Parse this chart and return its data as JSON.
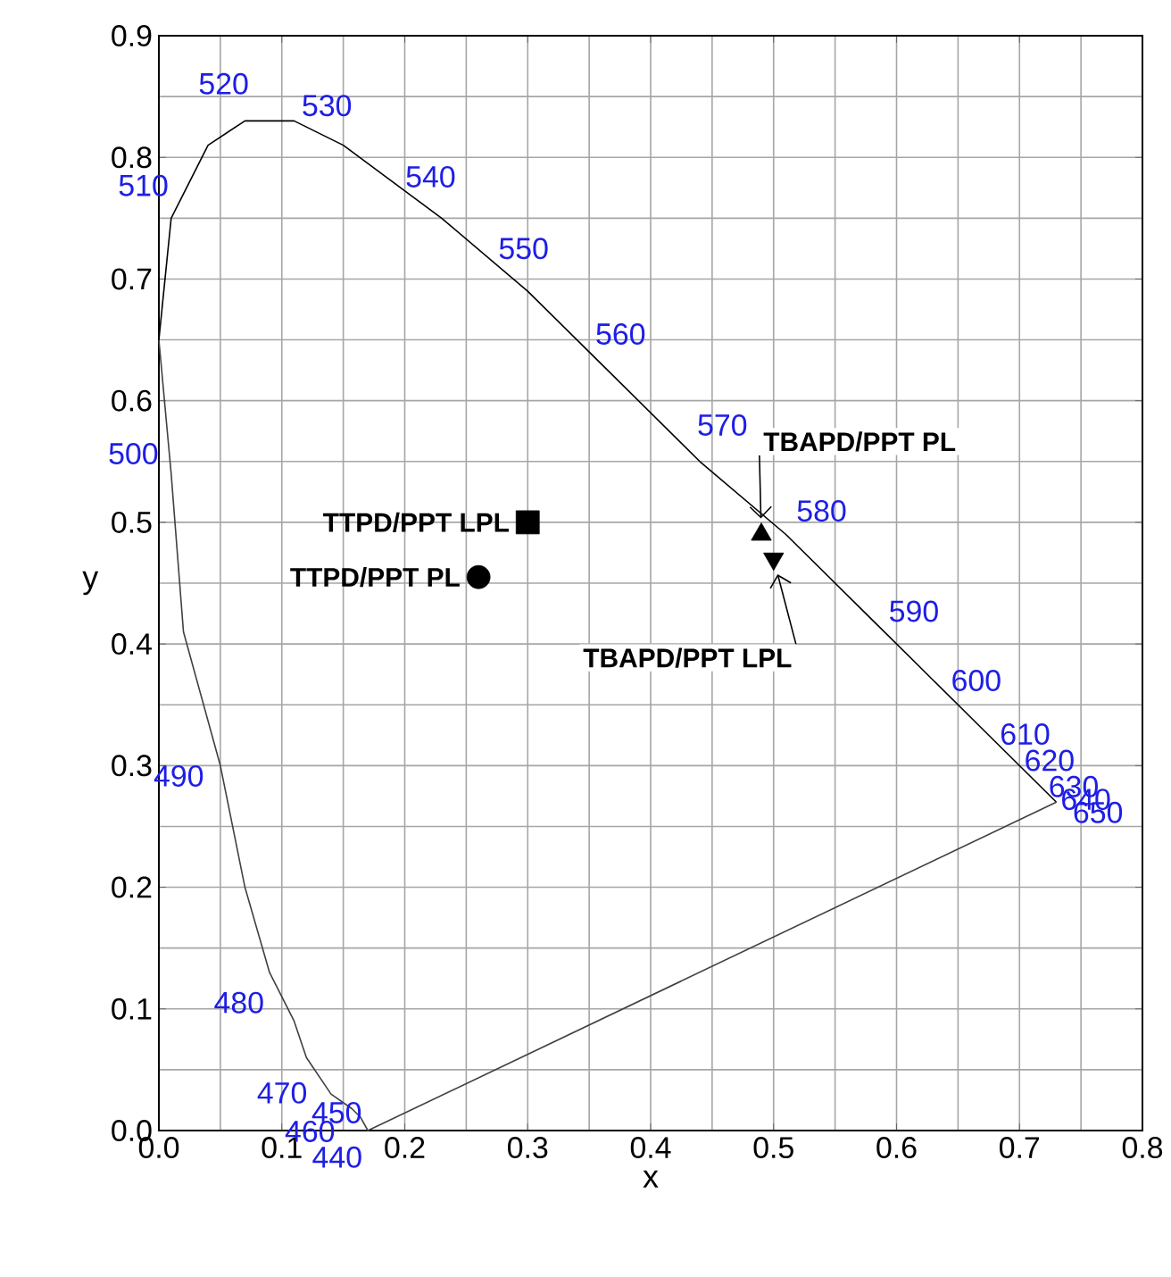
{
  "chart_data": {
    "type": "scatter",
    "xlabel": "x",
    "ylabel": "y",
    "xlim": [
      0,
      0.8
    ],
    "ylim": [
      0,
      0.9
    ],
    "xticks": [
      {
        "value": 0,
        "label": "0.0"
      },
      0.1,
      0.2,
      0.3,
      0.4,
      0.5,
      0.6,
      0.7,
      0.8
    ],
    "yticks": [
      {
        "value": 0,
        "label": "0.0"
      },
      0.1,
      0.2,
      0.3,
      0.4,
      0.5,
      0.6,
      0.7,
      0.8,
      0.9
    ],
    "grid": true,
    "series": [
      {
        "type": "line",
        "color": "#000000",
        "marker": "none",
        "x": [
          0.0,
          0.01,
          0.04,
          0.07,
          0.11,
          0.15,
          0.23,
          0.3,
          0.37,
          0.44,
          0.51,
          0.58,
          0.63,
          0.67,
          0.69,
          0.71,
          0.72,
          0.73
        ],
        "values": [
          0.65,
          0.75,
          0.81,
          0.83,
          0.83,
          0.81,
          0.75,
          0.69,
          0.62,
          0.55,
          0.49,
          0.42,
          0.37,
          0.33,
          0.31,
          0.29,
          0.28,
          0.27
        ]
      },
      {
        "type": "line",
        "color": "#404040",
        "marker": "none",
        "x": [
          0.0,
          0.01,
          0.02,
          0.05,
          0.07,
          0.09,
          0.11,
          0.12,
          0.14,
          0.157,
          0.164,
          0.17,
          0.73
        ],
        "values": [
          0.65,
          0.54,
          0.41,
          0.3,
          0.2,
          0.13,
          0.09,
          0.06,
          0.03,
          0.018,
          0.011,
          0.0,
          0.27
        ]
      },
      {
        "name": "TTPD/PPT  LPL",
        "color": "#000000",
        "marker": "square",
        "x": [
          0.3
        ],
        "values": [
          0.5
        ]
      },
      {
        "name": "TTPD/PPT  PL",
        "color": "#000000",
        "marker": "circle",
        "x": [
          0.26
        ],
        "values": [
          0.455
        ]
      },
      {
        "name": "TBAPD/PPT  PL",
        "color": "#000000",
        "marker": "triangle",
        "x": [
          0.49
        ],
        "values": [
          0.49
        ]
      },
      {
        "name": "TBAPD/PPT  LPL",
        "color": "#000000",
        "marker": "triangle",
        "x": [
          0.5
        ],
        "values": [
          0.47
        ]
      }
    ],
    "annotations": [
      {
        "text": "440",
        "x": 0.16,
        "y": 0.01
      },
      {
        "text": "450",
        "x": 0.16,
        "y": 0.02
      },
      {
        "text": "460",
        "x": 0.14,
        "y": 0.03
      },
      {
        "text": "470",
        "x": 0.12,
        "y": 0.06
      },
      {
        "text": "480",
        "x": 0.09,
        "y": 0.13
      },
      {
        "text": "490",
        "x": 0.05,
        "y": 0.3
      },
      {
        "text": "500",
        "x": 0.01,
        "y": 0.54
      },
      {
        "text": "510",
        "x": 0.01,
        "y": 0.75
      },
      {
        "text": "520",
        "x": 0.07,
        "y": 0.83
      },
      {
        "text": "530",
        "x": 0.15,
        "y": 0.81
      },
      {
        "text": "540",
        "x": 0.23,
        "y": 0.75
      },
      {
        "text": "550",
        "x": 0.3,
        "y": 0.69
      },
      {
        "text": "560",
        "x": 0.37,
        "y": 0.62
      },
      {
        "text": "570",
        "x": 0.44,
        "y": 0.55
      },
      {
        "text": "580",
        "x": 0.51,
        "y": 0.49
      },
      {
        "text": "590",
        "x": 0.58,
        "y": 0.42
      },
      {
        "text": "600",
        "x": 0.63,
        "y": 0.37
      },
      {
        "text": "610",
        "x": 0.67,
        "y": 0.33
      },
      {
        "text": "620",
        "x": 0.69,
        "y": 0.31
      },
      {
        "text": "630",
        "x": 0.71,
        "y": 0.29
      },
      {
        "text": "640",
        "x": 0.72,
        "y": 0.28
      },
      {
        "text": "650",
        "x": 0.73,
        "y": 0.27
      }
    ]
  }
}
